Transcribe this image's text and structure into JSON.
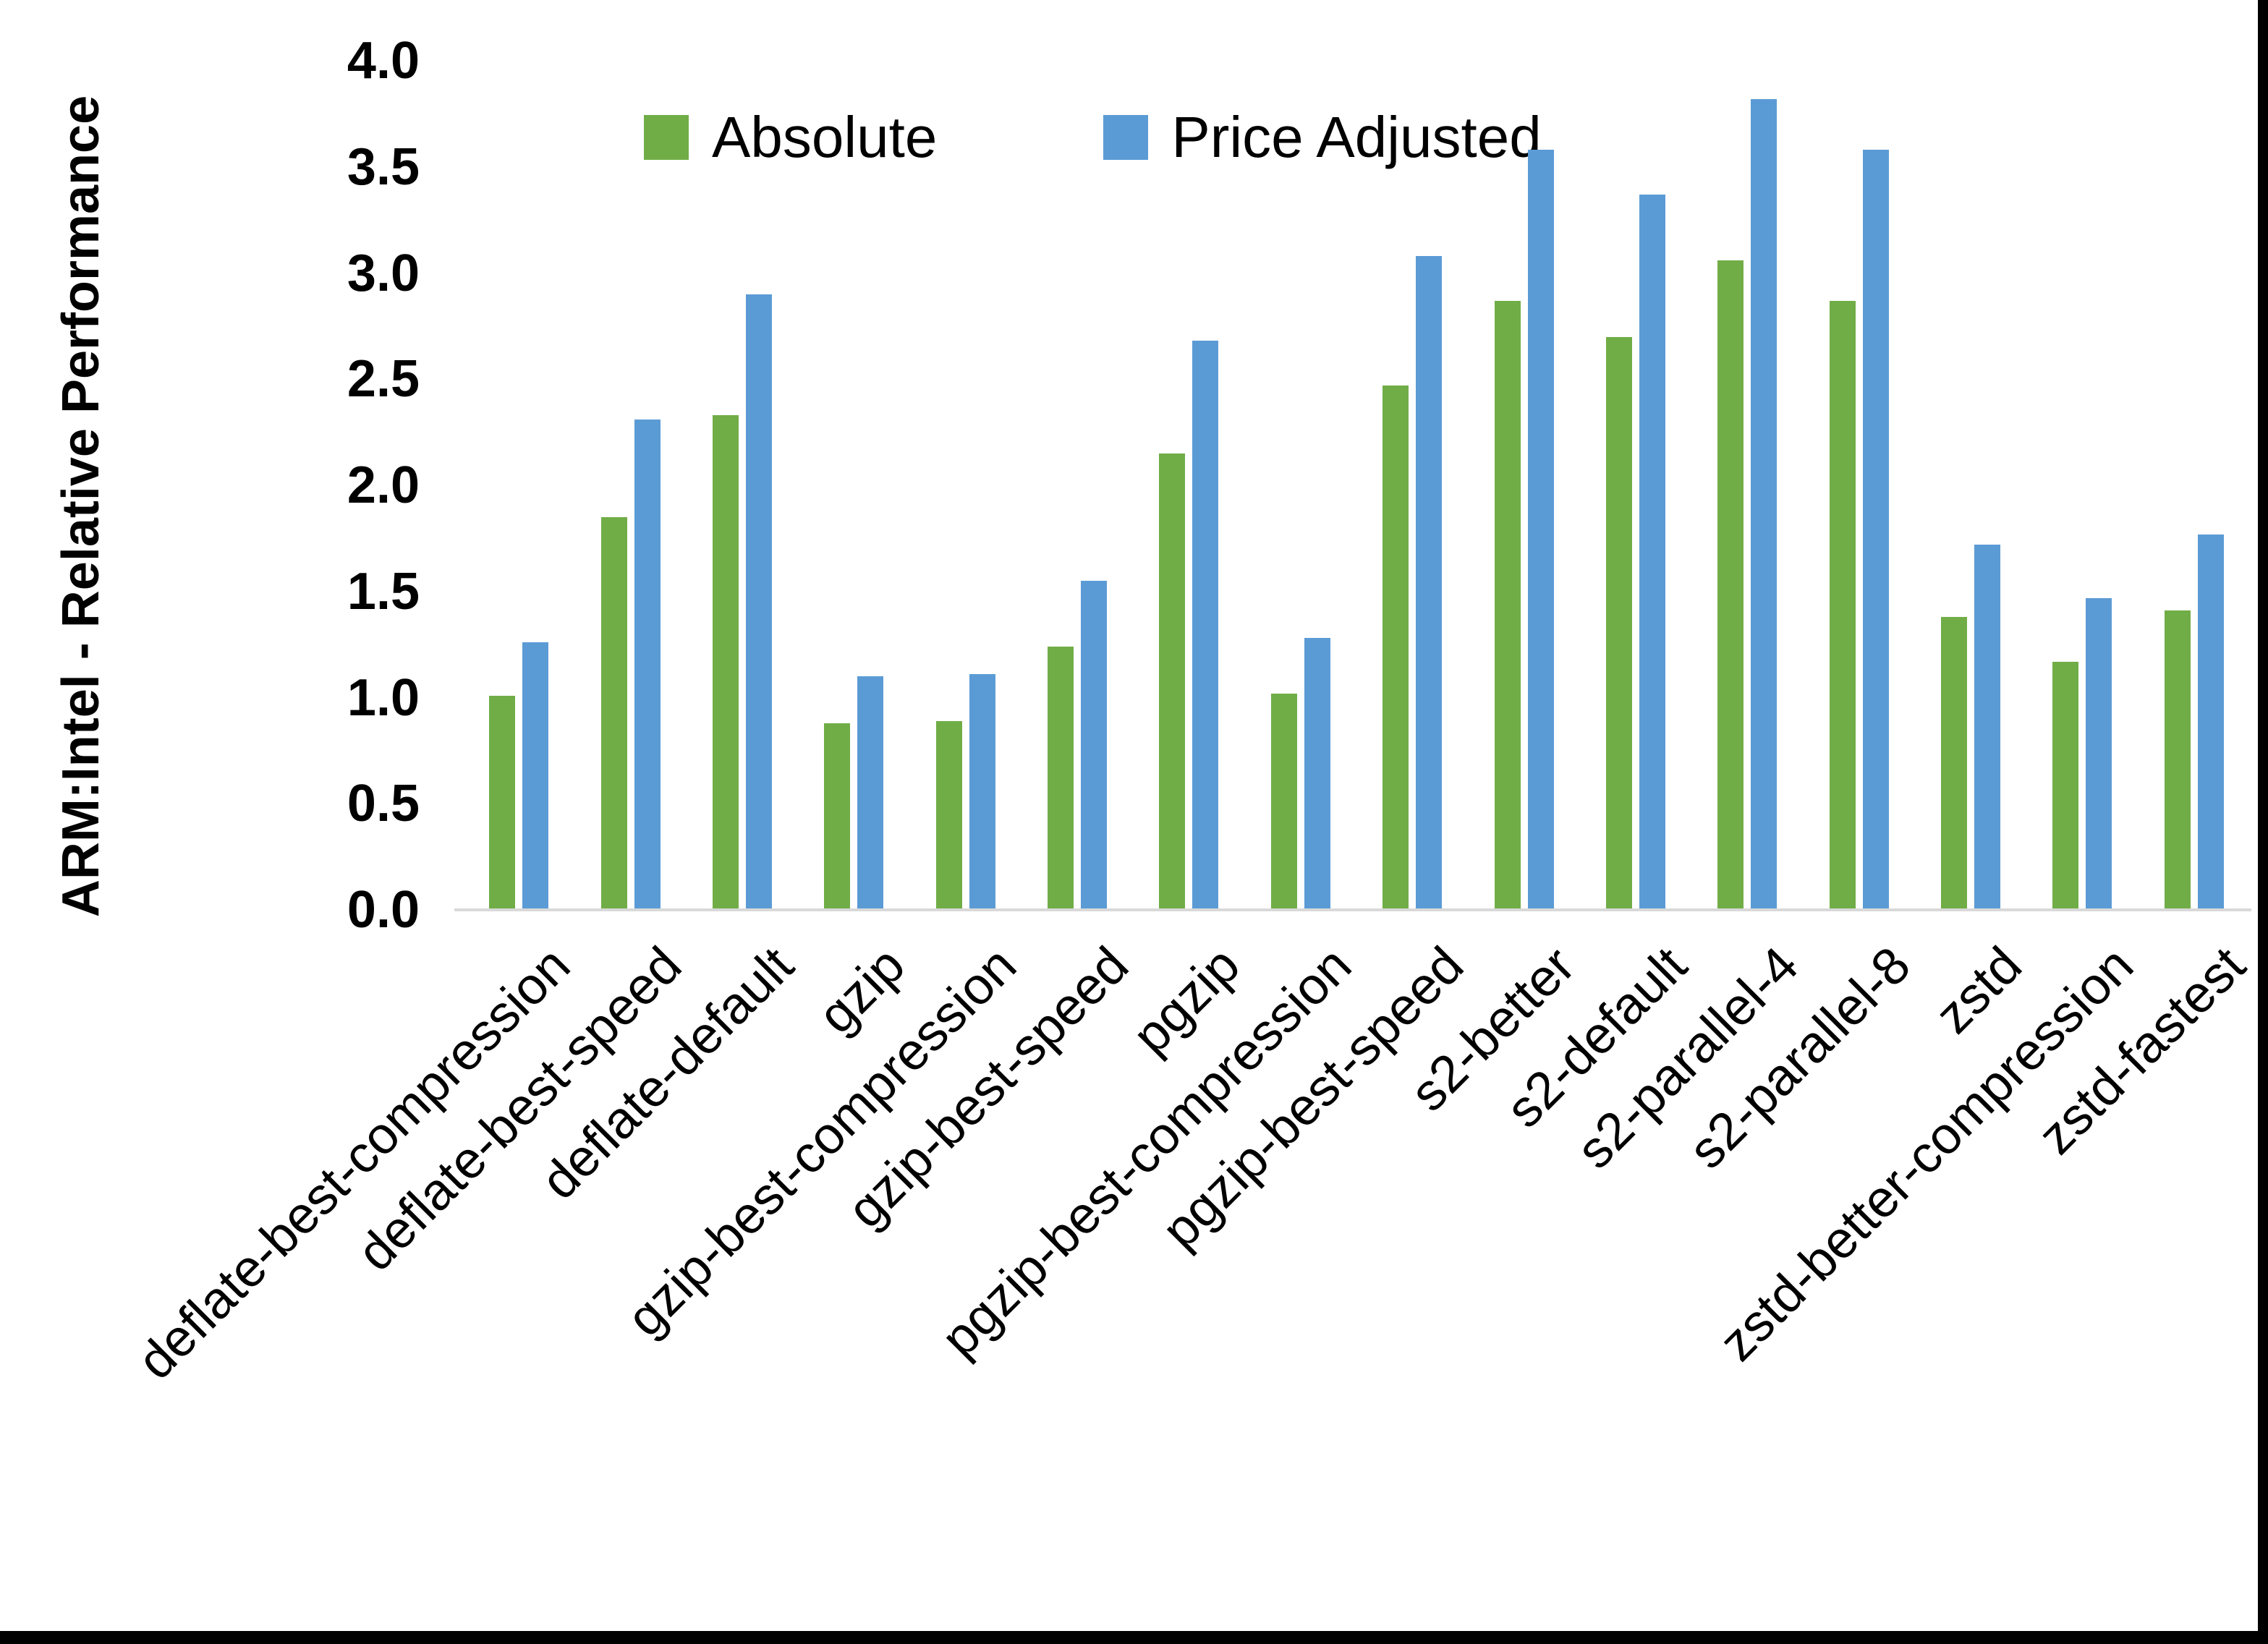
{
  "chart_data": {
    "type": "bar",
    "title": "",
    "xlabel": "",
    "ylabel": "ARM:Intel - Relative Performance",
    "ylim": [
      0,
      4
    ],
    "ytick_labels": [
      "4.0",
      "3.5",
      "3.0",
      "2.5",
      "2.0",
      "1.5",
      "1.0",
      "0.5",
      "0.0"
    ],
    "grid": false,
    "legend_position": "top-center",
    "categories": [
      "deflate-best-compression",
      "deflate-best-speed",
      "deflate-default",
      "gzip",
      "gzip-best-compression",
      "gzip-best-speed",
      "pgzip",
      "pgzip-best-compression",
      "pgzip-best-speed",
      "s2-better",
      "s2-default",
      "s2-parallel-4",
      "s2-parallel-8",
      "zstd",
      "zstd-better-compression",
      "zstd-fastest"
    ],
    "series": [
      {
        "name": "Absolute",
        "color": "#70AD47",
        "values": [
          1.01,
          1.85,
          2.33,
          0.88,
          0.89,
          1.24,
          2.15,
          1.02,
          2.47,
          2.87,
          2.7,
          3.06,
          2.87,
          1.38,
          1.17,
          1.41
        ]
      },
      {
        "name": "Price Adjusted",
        "color": "#5B9BD5",
        "values": [
          1.26,
          2.31,
          2.9,
          1.1,
          1.11,
          1.55,
          2.68,
          1.28,
          3.08,
          3.58,
          3.37,
          3.82,
          3.58,
          1.72,
          1.47,
          1.77
        ]
      }
    ]
  },
  "colors": {
    "background": "#FFFFFF",
    "axis_line": "#D9D9D9",
    "text": "#000000",
    "border": "#000000"
  }
}
